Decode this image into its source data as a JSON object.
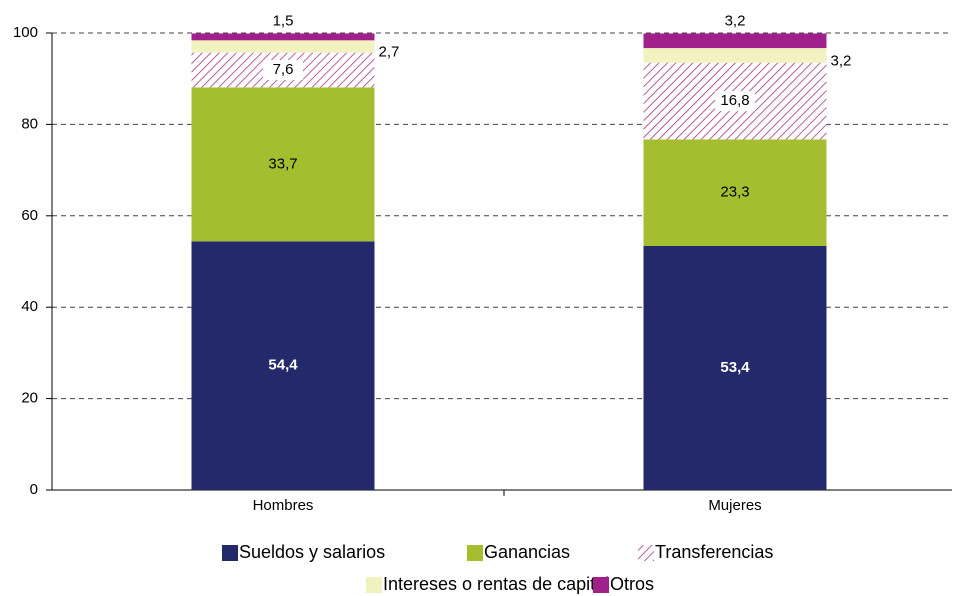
{
  "chart_data": {
    "type": "stacked_bar",
    "categories": [
      "Hombres",
      "Mujeres"
    ],
    "series": [
      {
        "name": "Sueldos y salarios",
        "color": "#23296b",
        "values": [
          54.4,
          53.4
        ],
        "value_labels": [
          "54,4",
          "53,4"
        ]
      },
      {
        "name": "Ganancias",
        "color": "#a5be2f",
        "values": [
          33.7,
          23.3
        ],
        "value_labels": [
          "33,7",
          "23,3"
        ]
      },
      {
        "name": "Transferencias",
        "color": "#a0287d",
        "pattern": "hatch",
        "values": [
          7.6,
          16.8
        ],
        "value_labels": [
          "7,6",
          "16,8"
        ]
      },
      {
        "name": "Intereses o rentas de capital",
        "color": "#f2f2c0",
        "values": [
          2.7,
          3.2
        ],
        "value_labels": [
          "2,7",
          "3,2"
        ]
      },
      {
        "name": "Otros",
        "color": "#a0208c",
        "values": [
          1.5,
          3.2
        ],
        "value_labels": [
          "1,5",
          "3,2"
        ]
      }
    ],
    "ylim": [
      0,
      100
    ],
    "yticks": [
      0,
      20,
      40,
      60,
      80,
      100
    ],
    "grid": true,
    "legend": "bottom"
  }
}
